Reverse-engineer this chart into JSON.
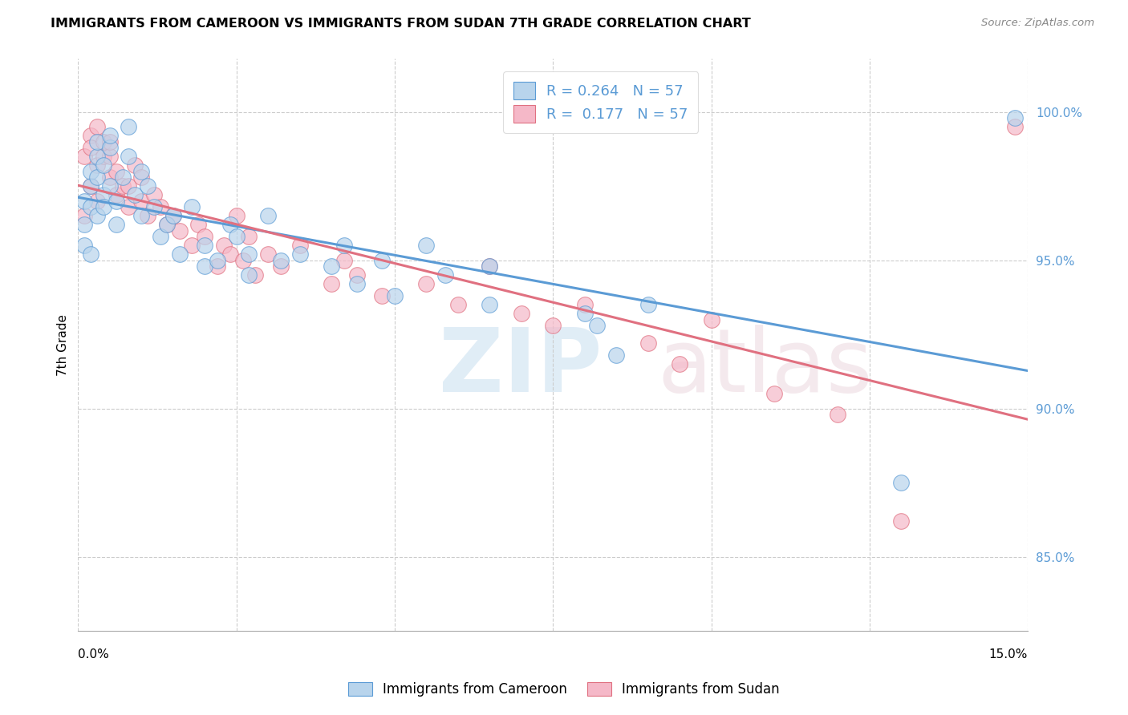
{
  "title": "IMMIGRANTS FROM CAMEROON VS IMMIGRANTS FROM SUDAN 7TH GRADE CORRELATION CHART",
  "source": "Source: ZipAtlas.com",
  "ylabel": "7th Grade",
  "y_ticks": [
    85.0,
    90.0,
    95.0,
    100.0
  ],
  "y_tick_labels": [
    "85.0%",
    "90.0%",
    "95.0%",
    "100.0%"
  ],
  "legend_entries": [
    {
      "label": "R = 0.264   N = 57"
    },
    {
      "label": "R =  0.177   N = 57"
    }
  ],
  "legend_bottom": [
    "Immigrants from Cameroon",
    "Immigrants from Sudan"
  ],
  "cameroon_color": "#b8d4ec",
  "sudan_color": "#f5b8c8",
  "cameroon_line_color": "#5b9bd5",
  "sudan_line_color": "#e07080",
  "cameroon_edge_color": "#5b9bd5",
  "sudan_edge_color": "#e07080",
  "xmin": 0.0,
  "xmax": 0.15,
  "ymin": 82.5,
  "ymax": 101.8,
  "cameroon_points": [
    [
      0.001,
      95.5
    ],
    [
      0.001,
      96.2
    ],
    [
      0.001,
      97.0
    ],
    [
      0.002,
      97.5
    ],
    [
      0.002,
      96.8
    ],
    [
      0.002,
      98.0
    ],
    [
      0.002,
      95.2
    ],
    [
      0.003,
      97.8
    ],
    [
      0.003,
      96.5
    ],
    [
      0.003,
      98.5
    ],
    [
      0.003,
      99.0
    ],
    [
      0.004,
      97.2
    ],
    [
      0.004,
      98.2
    ],
    [
      0.004,
      96.8
    ],
    [
      0.005,
      97.5
    ],
    [
      0.005,
      98.8
    ],
    [
      0.005,
      99.2
    ],
    [
      0.006,
      97.0
    ],
    [
      0.006,
      96.2
    ],
    [
      0.007,
      97.8
    ],
    [
      0.008,
      98.5
    ],
    [
      0.008,
      99.5
    ],
    [
      0.009,
      97.2
    ],
    [
      0.01,
      96.5
    ],
    [
      0.01,
      98.0
    ],
    [
      0.011,
      97.5
    ],
    [
      0.012,
      96.8
    ],
    [
      0.013,
      95.8
    ],
    [
      0.014,
      96.2
    ],
    [
      0.015,
      96.5
    ],
    [
      0.016,
      95.2
    ],
    [
      0.018,
      96.8
    ],
    [
      0.02,
      94.8
    ],
    [
      0.02,
      95.5
    ],
    [
      0.022,
      95.0
    ],
    [
      0.024,
      96.2
    ],
    [
      0.025,
      95.8
    ],
    [
      0.027,
      94.5
    ],
    [
      0.027,
      95.2
    ],
    [
      0.03,
      96.5
    ],
    [
      0.032,
      95.0
    ],
    [
      0.035,
      95.2
    ],
    [
      0.04,
      94.8
    ],
    [
      0.042,
      95.5
    ],
    [
      0.044,
      94.2
    ],
    [
      0.048,
      95.0
    ],
    [
      0.05,
      93.8
    ],
    [
      0.055,
      95.5
    ],
    [
      0.058,
      94.5
    ],
    [
      0.065,
      93.5
    ],
    [
      0.065,
      94.8
    ],
    [
      0.08,
      93.2
    ],
    [
      0.082,
      92.8
    ],
    [
      0.085,
      91.8
    ],
    [
      0.09,
      93.5
    ],
    [
      0.13,
      87.5
    ],
    [
      0.148,
      99.8
    ]
  ],
  "sudan_points": [
    [
      0.001,
      96.5
    ],
    [
      0.001,
      98.5
    ],
    [
      0.002,
      99.2
    ],
    [
      0.002,
      98.8
    ],
    [
      0.002,
      97.5
    ],
    [
      0.003,
      98.2
    ],
    [
      0.003,
      97.0
    ],
    [
      0.003,
      99.5
    ],
    [
      0.004,
      98.5
    ],
    [
      0.004,
      99.0
    ],
    [
      0.005,
      97.8
    ],
    [
      0.005,
      98.5
    ],
    [
      0.005,
      99.0
    ],
    [
      0.006,
      97.2
    ],
    [
      0.006,
      98.0
    ],
    [
      0.007,
      97.5
    ],
    [
      0.008,
      96.8
    ],
    [
      0.008,
      97.5
    ],
    [
      0.009,
      98.2
    ],
    [
      0.01,
      97.0
    ],
    [
      0.01,
      97.8
    ],
    [
      0.011,
      96.5
    ],
    [
      0.012,
      97.2
    ],
    [
      0.013,
      96.8
    ],
    [
      0.014,
      96.2
    ],
    [
      0.015,
      96.5
    ],
    [
      0.016,
      96.0
    ],
    [
      0.018,
      95.5
    ],
    [
      0.019,
      96.2
    ],
    [
      0.02,
      95.8
    ],
    [
      0.022,
      94.8
    ],
    [
      0.023,
      95.5
    ],
    [
      0.024,
      95.2
    ],
    [
      0.025,
      96.5
    ],
    [
      0.026,
      95.0
    ],
    [
      0.027,
      95.8
    ],
    [
      0.028,
      94.5
    ],
    [
      0.03,
      95.2
    ],
    [
      0.032,
      94.8
    ],
    [
      0.035,
      95.5
    ],
    [
      0.04,
      94.2
    ],
    [
      0.042,
      95.0
    ],
    [
      0.044,
      94.5
    ],
    [
      0.048,
      93.8
    ],
    [
      0.055,
      94.2
    ],
    [
      0.06,
      93.5
    ],
    [
      0.065,
      94.8
    ],
    [
      0.07,
      93.2
    ],
    [
      0.075,
      92.8
    ],
    [
      0.08,
      93.5
    ],
    [
      0.09,
      92.2
    ],
    [
      0.095,
      91.5
    ],
    [
      0.1,
      93.0
    ],
    [
      0.11,
      90.5
    ],
    [
      0.12,
      89.8
    ],
    [
      0.13,
      86.2
    ],
    [
      0.148,
      99.5
    ]
  ]
}
